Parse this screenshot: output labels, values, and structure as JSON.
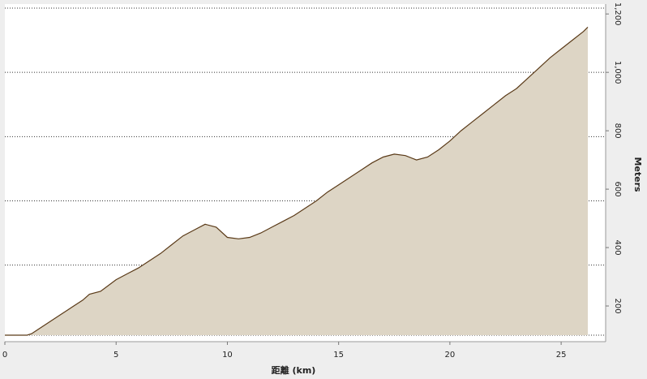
{
  "chart_data": {
    "type": "area",
    "xlabel": "距離 (km)",
    "ylabel": "Meters",
    "xlim": [
      0,
      27
    ],
    "ylim": [
      100,
      1220
    ],
    "x_ticks": [
      0,
      5,
      10,
      15,
      20,
      25
    ],
    "x_tick_labels": [
      "0",
      "5",
      "10",
      "15",
      "20",
      "25"
    ],
    "y_ticks": [
      200,
      400,
      600,
      800,
      1000,
      1200
    ],
    "y_tick_labels": [
      "200",
      "400",
      "600",
      "800",
      "1,000",
      "1,200"
    ],
    "gridlines": [
      100,
      340,
      560,
      780,
      1000,
      1220
    ],
    "grid": true,
    "series": [
      {
        "x": [
          0,
          0.5,
          1.0,
          1.2,
          1.5,
          2.0,
          2.5,
          3.0,
          3.5,
          3.8,
          4.3,
          5.0,
          5.5,
          6.0,
          6.5,
          7.0,
          7.5,
          8.0,
          8.5,
          9.0,
          9.5,
          10.0,
          10.5,
          11.0,
          11.5,
          12.0,
          12.5,
          13.0,
          13.5,
          14.0,
          14.5,
          15.0,
          15.5,
          16.0,
          16.5,
          17.0,
          17.5,
          18.0,
          18.5,
          19.0,
          19.5,
          20.0,
          20.5,
          21.0,
          21.5,
          22.0,
          22.5,
          23.0,
          23.5,
          24.0,
          24.5,
          25.0,
          25.5,
          26.0,
          26.2
        ],
        "y": [
          100,
          100,
          100,
          105,
          120,
          145,
          170,
          195,
          220,
          240,
          250,
          290,
          310,
          330,
          355,
          380,
          410,
          440,
          460,
          480,
          470,
          435,
          430,
          435,
          450,
          470,
          490,
          510,
          535,
          560,
          590,
          615,
          640,
          665,
          690,
          710,
          720,
          715,
          700,
          710,
          735,
          765,
          800,
          830,
          860,
          890,
          920,
          945,
          980,
          1015,
          1050,
          1080,
          1110,
          1140,
          1155
        ],
        "color": "#ddd5c5",
        "line_color": "#5a3a18"
      }
    ]
  }
}
